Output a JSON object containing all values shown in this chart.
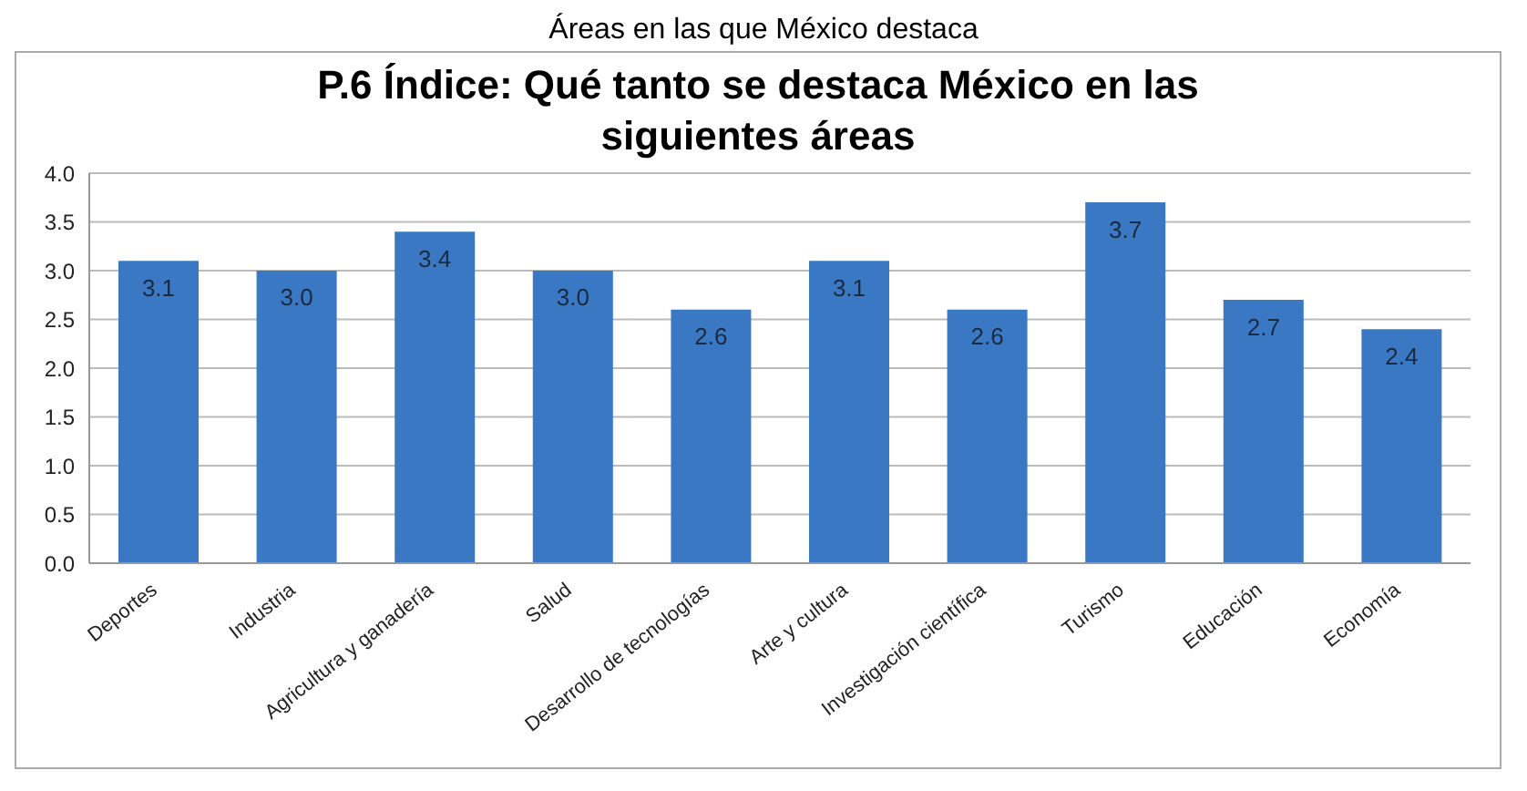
{
  "chart_data": {
    "type": "bar",
    "title": "Áreas en las que México destaca",
    "subtitle": "P.6 Índice: Qué tanto se destaca México en las siguientes áreas",
    "categories": [
      "Deportes",
      "Industria",
      "Agricultura y ganadería",
      "Salud",
      "Desarrollo de tecnologías",
      "Arte y cultura",
      "Investigación científica",
      "Turismo",
      "Educación",
      "Economía"
    ],
    "values": [
      3.1,
      3.0,
      3.4,
      3.0,
      2.6,
      3.1,
      2.6,
      3.7,
      2.7,
      2.4
    ],
    "value_labels": [
      "3.1",
      "3.0",
      "3.4",
      "3.0",
      "2.6",
      "3.1",
      "2.6",
      "3.7",
      "2.7",
      "2.4"
    ],
    "color": "#3a78c4",
    "grid": "y",
    "legend": false,
    "ylim": [
      0,
      4
    ],
    "yticks": [
      {
        "value": 0,
        "label": "0.0"
      },
      {
        "value": 0.5,
        "label": "0.5"
      },
      {
        "value": 1,
        "label": "1.0"
      },
      {
        "value": 1.5,
        "label": "1.5"
      },
      {
        "value": 2,
        "label": "2.0"
      },
      {
        "value": 2.5,
        "label": "2.5"
      },
      {
        "value": 3,
        "label": "3.0"
      },
      {
        "value": 3.5,
        "label": "3.5"
      },
      {
        "value": 4,
        "label": "4.0"
      }
    ]
  }
}
